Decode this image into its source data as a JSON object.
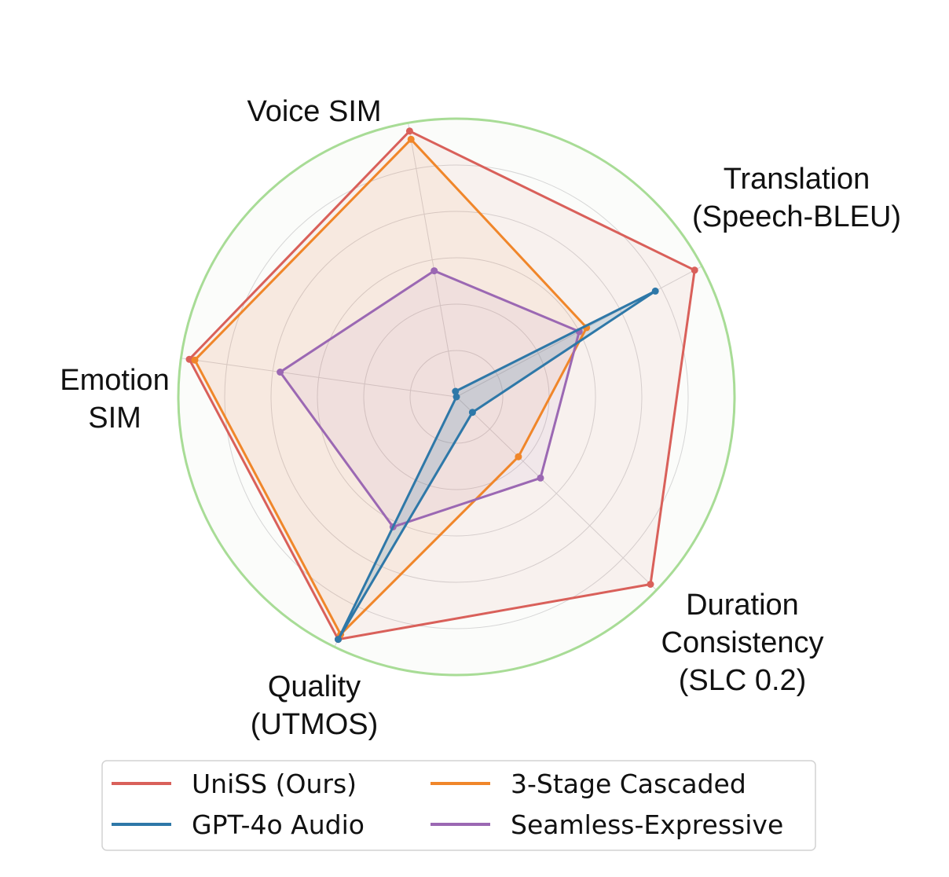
{
  "chart_data": {
    "type": "radar",
    "axes": [
      {
        "key": "voice_sim",
        "lines": [
          "Voice SIM"
        ]
      },
      {
        "key": "translation",
        "lines": [
          "Translation",
          "(Speech-BLEU)"
        ]
      },
      {
        "key": "duration",
        "lines": [
          "Duration",
          "Consistency",
          "(SLC 0.2)"
        ]
      },
      {
        "key": "quality",
        "lines": [
          "Quality",
          "(UTMOS)"
        ]
      },
      {
        "key": "emotion_sim",
        "lines": [
          "Emotion",
          "SIM"
        ]
      }
    ],
    "range": [
      0,
      1
    ],
    "rings": 6,
    "grid": true,
    "series": [
      {
        "name": "UniSS (Ours)",
        "color": "#d9605a",
        "values": [
          0.97,
          0.97,
          0.97,
          0.97,
          0.97
        ]
      },
      {
        "name": "GPT-4o Audio",
        "color": "#2e78a8",
        "values": [
          0.02,
          0.81,
          0.08,
          0.97,
          0.0
        ]
      },
      {
        "name": "3-Stage Cascaded",
        "color": "#f0862a",
        "values": [
          0.94,
          0.53,
          0.31,
          0.95,
          0.95
        ]
      },
      {
        "name": "Seamless-Expressive",
        "color": "#9b68b3",
        "values": [
          0.46,
          0.5,
          0.42,
          0.52,
          0.64
        ]
      }
    ],
    "legend": {
      "placement": "bottom",
      "columns": 2
    }
  }
}
